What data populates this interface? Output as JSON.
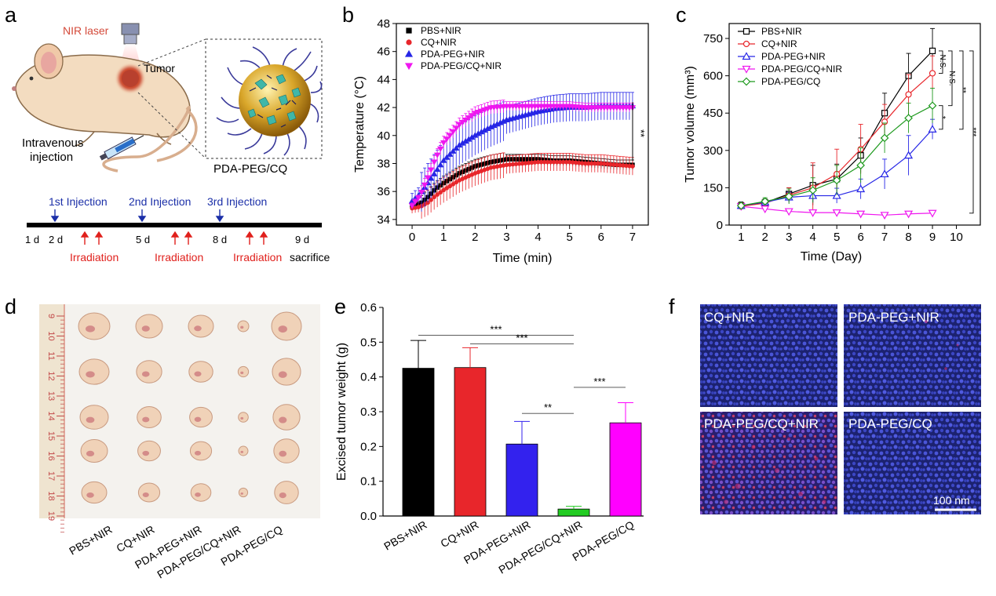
{
  "panels": {
    "a": {
      "letter": "a",
      "nir_laser": "NIR laser",
      "tumor": "Tumor",
      "injection_line1": "Intravenous",
      "injection_line2": "injection",
      "nanoparticle": "PDA-PEG/CQ",
      "timeline_injections": [
        "1st Injection",
        "2nd Injection",
        "3rd Injection"
      ],
      "timeline_days": [
        "1 d",
        "2 d",
        "5 d",
        "8 d",
        "9 d"
      ],
      "irradiation": "Irradiation",
      "sacrifice": "sacrifice"
    },
    "b": {
      "letter": "b"
    },
    "c": {
      "letter": "c"
    },
    "d": {
      "letter": "d",
      "ruler_ticks": [
        "9",
        "10",
        "11",
        "12",
        "13",
        "14",
        "15",
        "16",
        "17",
        "18",
        "19"
      ],
      "groups": [
        "PBS+NIR",
        "CQ+NIR",
        "PDA-PEG+NIR",
        "PDA-PEG/CQ+NIR",
        "PDA-PEG/CQ"
      ]
    },
    "e": {
      "letter": "e"
    },
    "f": {
      "letter": "f",
      "images": [
        "CQ+NIR",
        "PDA-PEG+NIR",
        "PDA-PEG/CQ+NIR",
        "PDA-PEG/CQ"
      ],
      "scale_bar": "100 nm"
    }
  },
  "colors": {
    "black": "#000000",
    "red": "#e8262b",
    "blue": "#2626e6",
    "magenta": "#ef17ef",
    "green": "#1e9a1e",
    "irr_red": "#e0201c",
    "inj_blue": "#1b2fa8"
  },
  "chart_data": [
    {
      "id": "b",
      "type": "scatter",
      "xlabel": "Time (min)",
      "ylabel": "Temperature (°C)",
      "xlim": [
        -0.5,
        7.5
      ],
      "ylim": [
        33.6,
        48
      ],
      "xticks": [
        "0",
        "1",
        "2",
        "3",
        "4",
        "5",
        "6",
        "7"
      ],
      "yticks": [
        "34",
        "36",
        "38",
        "40",
        "42",
        "44",
        "46",
        "48"
      ],
      "legend_position": "top-left",
      "significance": "**",
      "series": [
        {
          "name": "PBS+NIR",
          "color": "#000000",
          "marker": "square",
          "points": [
            [
              0,
              35
            ],
            [
              0.25,
              35.1
            ],
            [
              0.5,
              35.6
            ],
            [
              0.75,
              36.2
            ],
            [
              1,
              36.6
            ],
            [
              1.5,
              37.3
            ],
            [
              2,
              37.8
            ],
            [
              2.5,
              38.1
            ],
            [
              3,
              38.3
            ],
            [
              3.5,
              38.3
            ],
            [
              4,
              38.3
            ],
            [
              4.5,
              38.2
            ],
            [
              5,
              38.2
            ],
            [
              5.5,
              38.1
            ],
            [
              6,
              38.0
            ],
            [
              6.5,
              37.9
            ],
            [
              7,
              37.9
            ]
          ]
        },
        {
          "name": "CQ+NIR",
          "color": "#e8262b",
          "marker": "circle",
          "points": [
            [
              0,
              34.8
            ],
            [
              0.25,
              34.9
            ],
            [
              0.5,
              35.2
            ],
            [
              0.75,
              35.7
            ],
            [
              1,
              36.1
            ],
            [
              1.5,
              36.8
            ],
            [
              2,
              37.3
            ],
            [
              2.5,
              37.7
            ],
            [
              3,
              37.9
            ],
            [
              3.5,
              38.0
            ],
            [
              4,
              38.1
            ],
            [
              4.5,
              38.1
            ],
            [
              5,
              38.1
            ],
            [
              5.5,
              38.0
            ],
            [
              6,
              38.0
            ],
            [
              6.5,
              37.9
            ],
            [
              7,
              37.8
            ]
          ]
        },
        {
          "name": "PDA-PEG+NIR",
          "color": "#2626e6",
          "marker": "triangle",
          "points": [
            [
              0,
              35.3
            ],
            [
              0.25,
              35.8
            ],
            [
              0.5,
              36.6
            ],
            [
              0.75,
              37.4
            ],
            [
              1,
              38.2
            ],
            [
              1.5,
              39.3
            ],
            [
              2,
              40.0
            ],
            [
              2.5,
              40.6
            ],
            [
              3,
              41.1
            ],
            [
              3.5,
              41.4
            ],
            [
              4,
              41.7
            ],
            [
              4.5,
              41.9
            ],
            [
              5,
              42.0
            ],
            [
              5.5,
              42.0
            ],
            [
              6,
              42.1
            ],
            [
              6.5,
              42.1
            ],
            [
              7,
              42.1
            ]
          ]
        },
        {
          "name": "PDA-PEG/CQ+NIR",
          "color": "#ef17ef",
          "marker": "triangle-down",
          "points": [
            [
              0,
              35.0
            ],
            [
              0.25,
              35.7
            ],
            [
              0.5,
              37.0
            ],
            [
              0.75,
              38.4
            ],
            [
              1,
              39.5
            ],
            [
              1.5,
              40.8
            ],
            [
              2,
              41.6
            ],
            [
              2.5,
              42.0
            ],
            [
              3,
              42.1
            ],
            [
              3.5,
              42.1
            ],
            [
              4,
              42.1
            ],
            [
              4.5,
              42.1
            ],
            [
              5,
              42.1
            ],
            [
              5.5,
              42.0
            ],
            [
              6,
              42.0
            ],
            [
              6.5,
              42.0
            ],
            [
              7,
              42.0
            ]
          ]
        }
      ]
    },
    {
      "id": "c",
      "type": "line",
      "xlabel": "Time (Day)",
      "ylabel": "Tumor volume (mm³)",
      "xlim": [
        0.5,
        11
      ],
      "ylim": [
        0,
        810
      ],
      "xticks": [
        "1",
        "2",
        "3",
        "4",
        "5",
        "6",
        "7",
        "8",
        "9",
        "10"
      ],
      "yticks": [
        "0",
        "150",
        "300",
        "450",
        "600",
        "750"
      ],
      "legend_position": "top-left",
      "significance": [
        "N.S.",
        "N.S.",
        "*",
        "**",
        "***"
      ],
      "series": [
        {
          "name": "PBS+NIR",
          "color": "#000000",
          "marker": "square",
          "points": [
            [
              1,
              78
            ],
            [
              2,
              90
            ],
            [
              3,
              125
            ],
            [
              4,
              160
            ],
            [
              5,
              185
            ],
            [
              6,
              280
            ],
            [
              7,
              450
            ],
            [
              8,
              600
            ],
            [
              9,
              700
            ]
          ],
          "err": [
            15,
            15,
            25,
            80,
            60,
            70,
            80,
            90,
            90
          ]
        },
        {
          "name": "CQ+NIR",
          "color": "#e8262b",
          "marker": "circle",
          "points": [
            [
              1,
              75
            ],
            [
              2,
              88
            ],
            [
              3,
              120
            ],
            [
              4,
              150
            ],
            [
              5,
              205
            ],
            [
              6,
              305
            ],
            [
              7,
              415
            ],
            [
              8,
              525
            ],
            [
              9,
              610
            ]
          ],
          "err": [
            15,
            15,
            30,
            100,
            100,
            100,
            70,
            80,
            70
          ]
        },
        {
          "name": "PDA-PEG+NIR",
          "color": "#2626e6",
          "marker": "triangle",
          "points": [
            [
              1,
              78
            ],
            [
              2,
              92
            ],
            [
              3,
              112
            ],
            [
              4,
              118
            ],
            [
              5,
              118
            ],
            [
              6,
              145
            ],
            [
              7,
              205
            ],
            [
              8,
              280
            ],
            [
              9,
              385
            ]
          ],
          "err": [
            10,
            10,
            20,
            25,
            30,
            40,
            60,
            80,
            40
          ]
        },
        {
          "name": "PDA-PEG/CQ+NIR",
          "color": "#ef17ef",
          "marker": "triangle-down",
          "points": [
            [
              1,
              75
            ],
            [
              2,
              65
            ],
            [
              3,
              55
            ],
            [
              4,
              50
            ],
            [
              5,
              50
            ],
            [
              6,
              45
            ],
            [
              7,
              40
            ],
            [
              8,
              45
            ],
            [
              9,
              48
            ]
          ],
          "err": [
            10,
            10,
            10,
            8,
            8,
            6,
            6,
            6,
            6
          ]
        },
        {
          "name": "PDA-PEG/CQ",
          "color": "#1e9a1e",
          "marker": "diamond",
          "points": [
            [
              1,
              78
            ],
            [
              2,
              95
            ],
            [
              3,
              115
            ],
            [
              4,
              140
            ],
            [
              5,
              180
            ],
            [
              6,
              240
            ],
            [
              7,
              350
            ],
            [
              8,
              430
            ],
            [
              9,
              480
            ]
          ],
          "err": [
            10,
            15,
            30,
            50,
            60,
            70,
            60,
            60,
            70
          ]
        }
      ]
    },
    {
      "id": "e",
      "type": "bar",
      "ylabel": "Excised tumor weight (g)",
      "categories": [
        "PBS+NIR",
        "CQ+NIR",
        "PDA-PEG+NIR",
        "PDA-PEG/CQ+NIR",
        "PDA-PEG/CQ"
      ],
      "values": [
        0.425,
        0.427,
        0.207,
        0.02,
        0.268
      ],
      "errors": [
        0.08,
        0.057,
        0.065,
        0.008,
        0.058
      ],
      "colors": [
        "#000000",
        "#e8262b",
        "#3322ee",
        "#22cc22",
        "#ff00ff"
      ],
      "ylim": [
        0,
        0.6
      ],
      "yticks": [
        "0.0",
        "0.1",
        "0.2",
        "0.3",
        "0.4",
        "0.5",
        "0.6"
      ],
      "significance": [
        {
          "from": 0,
          "to": 3,
          "label": "***"
        },
        {
          "from": 1,
          "to": 3,
          "label": "***"
        },
        {
          "from": 2,
          "to": 3,
          "label": "**"
        },
        {
          "from": 3,
          "to": 4,
          "label": "***"
        }
      ]
    }
  ]
}
